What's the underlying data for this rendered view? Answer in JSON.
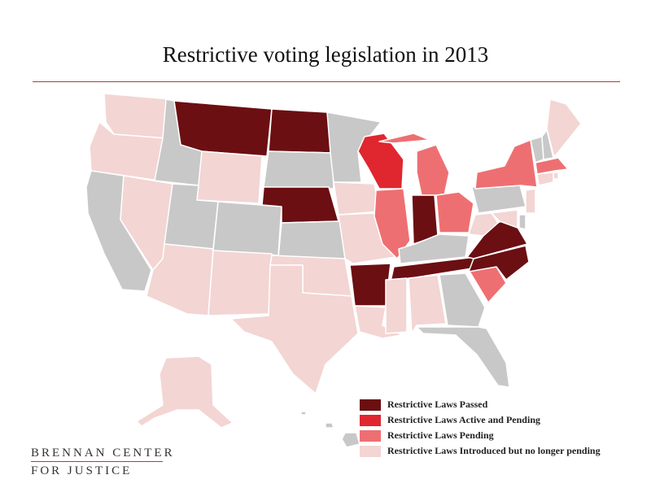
{
  "title": "Restrictive voting legislation in 2013",
  "colors": {
    "passed": "#6b0f12",
    "active_pending": "#e0262e",
    "pending": "#ee6f72",
    "introduced": "#f3d5d3",
    "none": "#c8c8c8",
    "rule": "#b23a3a"
  },
  "states": [
    {
      "abbr": "WA",
      "status": "introduced"
    },
    {
      "abbr": "OR",
      "status": "introduced"
    },
    {
      "abbr": "CA",
      "status": "none"
    },
    {
      "abbr": "NV",
      "status": "introduced"
    },
    {
      "abbr": "ID",
      "status": "none"
    },
    {
      "abbr": "MT",
      "status": "passed"
    },
    {
      "abbr": "WY",
      "status": "introduced"
    },
    {
      "abbr": "UT",
      "status": "none"
    },
    {
      "abbr": "AZ",
      "status": "introduced"
    },
    {
      "abbr": "CO",
      "status": "none"
    },
    {
      "abbr": "NM",
      "status": "introduced"
    },
    {
      "abbr": "ND",
      "status": "passed"
    },
    {
      "abbr": "SD",
      "status": "none"
    },
    {
      "abbr": "NE",
      "status": "passed"
    },
    {
      "abbr": "KS",
      "status": "none"
    },
    {
      "abbr": "OK",
      "status": "introduced"
    },
    {
      "abbr": "TX",
      "status": "introduced"
    },
    {
      "abbr": "MN",
      "status": "none"
    },
    {
      "abbr": "IA",
      "status": "introduced"
    },
    {
      "abbr": "MO",
      "status": "introduced"
    },
    {
      "abbr": "AR",
      "status": "passed"
    },
    {
      "abbr": "LA",
      "status": "introduced"
    },
    {
      "abbr": "WI",
      "status": "active_pending"
    },
    {
      "abbr": "IL",
      "status": "pending"
    },
    {
      "abbr": "MI",
      "status": "pending"
    },
    {
      "abbr": "IN",
      "status": "passed"
    },
    {
      "abbr": "OH",
      "status": "pending"
    },
    {
      "abbr": "KY",
      "status": "none"
    },
    {
      "abbr": "TN",
      "status": "passed"
    },
    {
      "abbr": "MS",
      "status": "introduced"
    },
    {
      "abbr": "AL",
      "status": "introduced"
    },
    {
      "abbr": "GA",
      "status": "none"
    },
    {
      "abbr": "FL",
      "status": "none"
    },
    {
      "abbr": "SC",
      "status": "pending"
    },
    {
      "abbr": "NC",
      "status": "passed"
    },
    {
      "abbr": "VA",
      "status": "passed"
    },
    {
      "abbr": "WV",
      "status": "introduced"
    },
    {
      "abbr": "PA",
      "status": "none"
    },
    {
      "abbr": "NY",
      "status": "pending"
    },
    {
      "abbr": "VT",
      "status": "none"
    },
    {
      "abbr": "NH",
      "status": "none"
    },
    {
      "abbr": "ME",
      "status": "introduced"
    },
    {
      "abbr": "MA",
      "status": "pending"
    },
    {
      "abbr": "RI",
      "status": "introduced"
    },
    {
      "abbr": "CT",
      "status": "introduced"
    },
    {
      "abbr": "NJ",
      "status": "introduced"
    },
    {
      "abbr": "DE",
      "status": "none"
    },
    {
      "abbr": "MD",
      "status": "introduced"
    },
    {
      "abbr": "AK",
      "status": "introduced"
    },
    {
      "abbr": "HI",
      "status": "none"
    }
  ],
  "legend": [
    {
      "label": "Restrictive Laws Passed",
      "status": "passed"
    },
    {
      "label": "Restrictive Laws Active and Pending",
      "status": "active_pending"
    },
    {
      "label": "Restrictive Laws Pending",
      "status": "pending"
    },
    {
      "label": "Restrictive Laws Introduced but no longer pending",
      "status": "introduced"
    }
  ],
  "brand": {
    "line1": "BRENNAN CENTER",
    "line2": "FOR JUSTICE"
  }
}
